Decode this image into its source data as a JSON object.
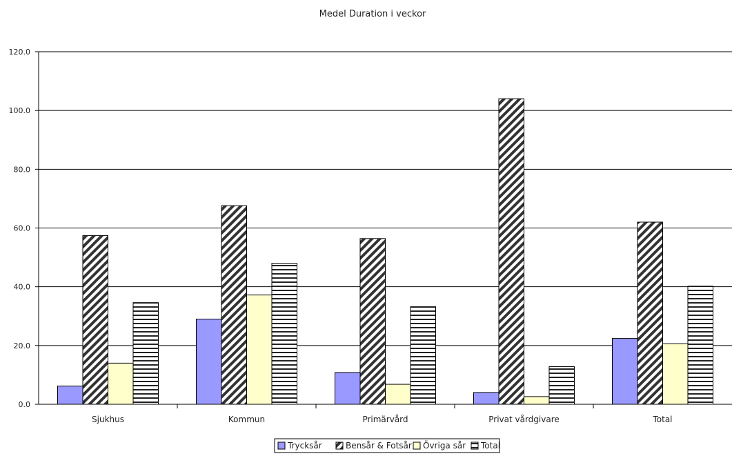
{
  "chart_data": {
    "type": "bar",
    "title": "Medel Duration i veckor",
    "xlabel": "",
    "ylabel": "",
    "categories": [
      "Sjukhus",
      "Kommun",
      "Primärvård",
      "Privat vårdgivare",
      "Total"
    ],
    "ylim": [
      0,
      120
    ],
    "yticks": [
      "0.0",
      "20.0",
      "40.0",
      "60.0",
      "80.0",
      "100.0",
      "120.0"
    ],
    "grid": true,
    "legend_position": "bottom",
    "series": [
      {
        "name": "Trycksår",
        "values": [
          6.2,
          29.0,
          10.8,
          4.0,
          22.4
        ],
        "fill": "solid",
        "color": "#9999ff"
      },
      {
        "name": "Bensår & Fotsår",
        "values": [
          57.4,
          67.6,
          56.4,
          104.0,
          62.0
        ],
        "fill": "diagonal",
        "color": "#333333"
      },
      {
        "name": "Övriga sår",
        "values": [
          14.0,
          37.2,
          6.8,
          2.6,
          20.6
        ],
        "fill": "solid",
        "color": "#ffffcc"
      },
      {
        "name": "Total",
        "values": [
          34.6,
          48.0,
          33.2,
          12.8,
          40.2
        ],
        "fill": "horizontal",
        "color": "#333333"
      }
    ]
  }
}
